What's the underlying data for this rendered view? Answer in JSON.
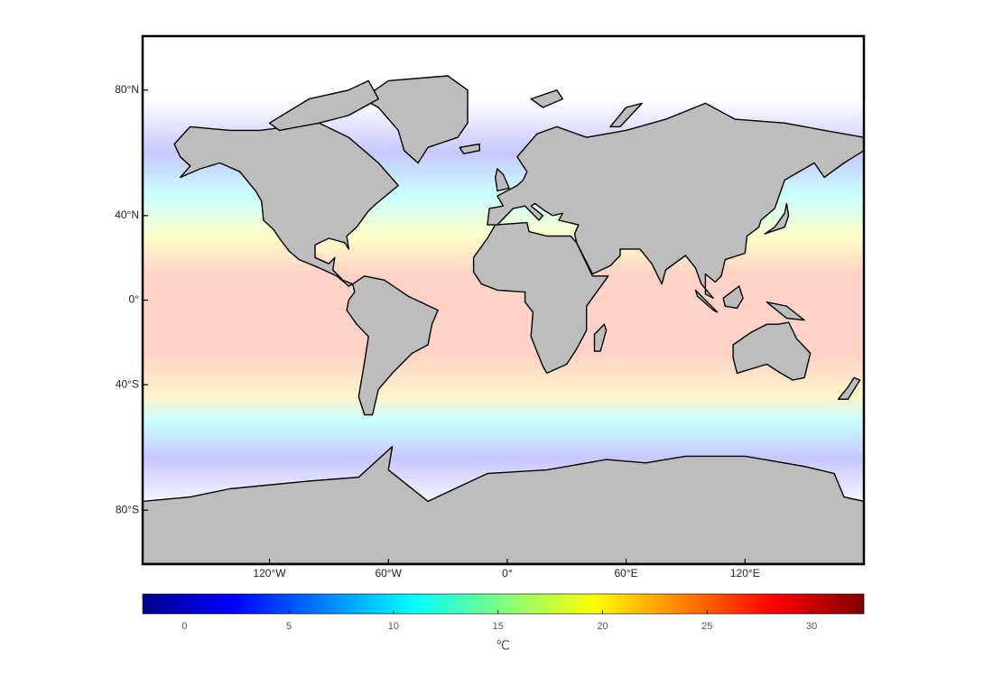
{
  "chart_data": {
    "type": "map",
    "projection": "miller",
    "xlim": [
      -184,
      180
    ],
    "xticks": [
      {
        "value": -120,
        "label": "120°W"
      },
      {
        "value": -60,
        "label": "60°W"
      },
      {
        "value": 0,
        "label": "0°"
      },
      {
        "value": 60,
        "label": "60°E"
      },
      {
        "value": 120,
        "label": "120°E"
      }
    ],
    "ylim": [
      -90,
      90
    ],
    "yticks": [
      {
        "value": 80,
        "label": "80°N"
      },
      {
        "value": 40,
        "label": "40°N"
      },
      {
        "value": 0,
        "label": "0°"
      },
      {
        "value": -40,
        "label": "40°S"
      },
      {
        "value": -80,
        "label": "80°S"
      }
    ],
    "colorbar": {
      "colormap": "jet",
      "clim": [
        -2,
        32.5
      ],
      "ticks": [
        0,
        5,
        10,
        15,
        20,
        25,
        30
      ],
      "label": "℃"
    }
  }
}
